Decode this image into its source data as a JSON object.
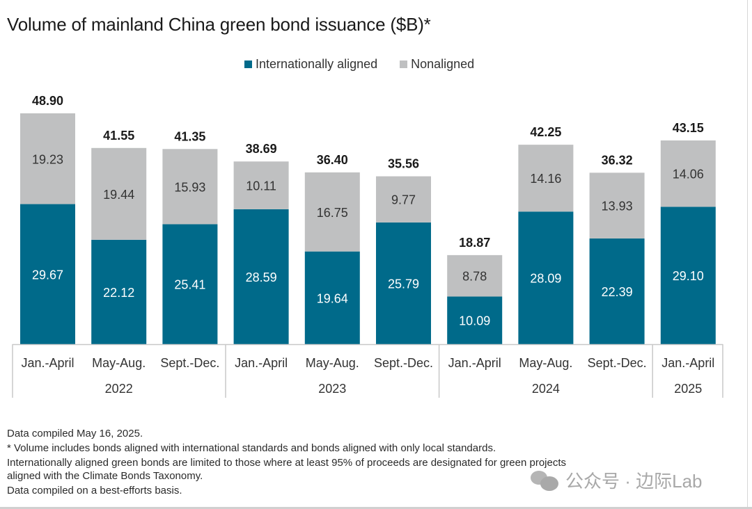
{
  "chart_data": {
    "type": "bar",
    "stacked": true,
    "title": "Volume of mainland China green bond issuance ($B)*",
    "xlabel": "",
    "ylabel": "",
    "ylim": [
      0,
      50
    ],
    "grid": false,
    "legend_position": "top-center",
    "categories": [
      "Jan.-April",
      "May-Aug.",
      "Sept.-Dec.",
      "Jan.-April",
      "May-Aug.",
      "Sept.-Dec.",
      "Jan.-April",
      "May-Aug.",
      "Sept.-Dec.",
      "Jan.-April"
    ],
    "groups": [
      {
        "label": "2022",
        "count": 3
      },
      {
        "label": "2023",
        "count": 3
      },
      {
        "label": "2024",
        "count": 3
      },
      {
        "label": "2025",
        "count": 1
      }
    ],
    "series": [
      {
        "name": "Internationally aligned",
        "color": "#006a8a",
        "values": [
          29.67,
          22.12,
          25.41,
          28.59,
          19.64,
          25.79,
          10.09,
          28.09,
          22.39,
          29.1
        ],
        "labels": [
          "29.67",
          "22.12",
          "25.41",
          "28.59",
          "19.64",
          "25.79",
          "10.09",
          "28.09",
          "22.39",
          "29.10"
        ]
      },
      {
        "name": "Nonaligned",
        "color": "#bfc0c1",
        "values": [
          19.23,
          19.44,
          15.93,
          10.11,
          16.75,
          9.77,
          8.78,
          14.16,
          13.93,
          14.06
        ],
        "labels": [
          "19.23",
          "19.44",
          "15.93",
          "10.11",
          "16.75",
          "9.77",
          "8.78",
          "14.16",
          "13.93",
          "14.06"
        ]
      }
    ],
    "totals": [
      48.9,
      41.55,
      41.35,
      38.69,
      36.4,
      35.56,
      18.87,
      42.25,
      36.32,
      43.15
    ],
    "total_labels": [
      "48.90",
      "41.55",
      "41.35",
      "38.69",
      "36.40",
      "35.56",
      "18.87",
      "42.25",
      "36.32",
      "43.15"
    ]
  },
  "legend": {
    "items": [
      {
        "label": "Internationally aligned",
        "color": "#006a8a"
      },
      {
        "label": "Nonaligned",
        "color": "#bfc0c1"
      }
    ]
  },
  "footer": {
    "lines": [
      "Data compiled May 16, 2025.",
      "* Volume includes bonds aligned with international standards and bonds aligned with only local standards.",
      "Internationally aligned green bonds are limited to those where at least 95% of proceeds are designated for green projects",
      "aligned with the Climate Bonds Taxonomy.",
      "Data compiled on a best-efforts basis."
    ]
  },
  "watermark": {
    "icon": "wechat-icon",
    "text": "公众号 · 边际Lab"
  }
}
